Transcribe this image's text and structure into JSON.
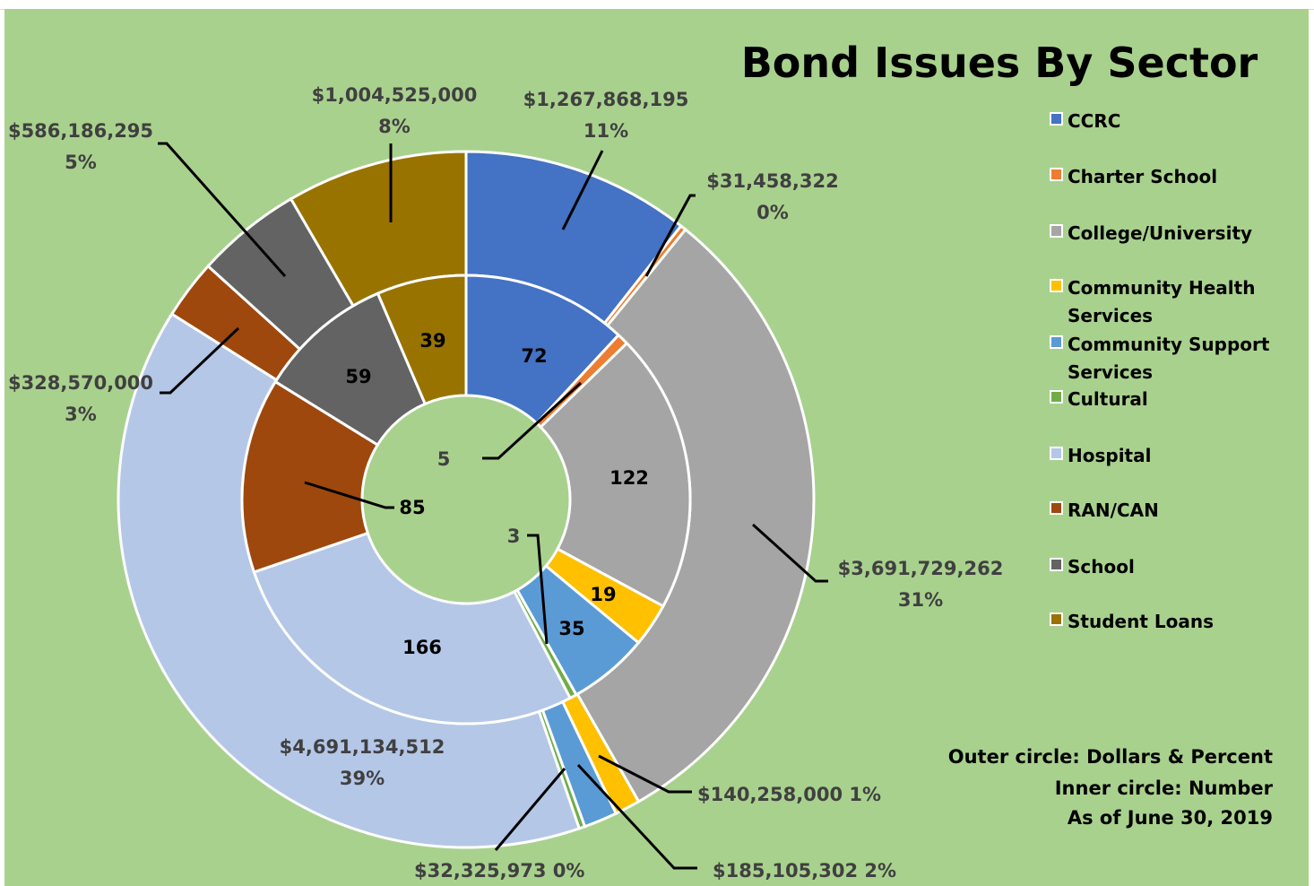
{
  "chart_data": {
    "type": "pie",
    "subtype": "nested-doughnut",
    "title": "Bond Issues By Sector",
    "categories": [
      "CCRC",
      "Charter School",
      "College/University",
      "Community Health Services",
      "Community Support Services",
      "Cultural",
      "Hospital",
      "RAN/CAN",
      "School",
      "Student Loans"
    ],
    "colors": [
      "#4472c4",
      "#ed7d31",
      "#a5a5a5",
      "#ffc000",
      "#5b9bd5",
      "#70ad47",
      "#b4c7e7",
      "#9e480e",
      "#636363",
      "#997300"
    ],
    "series": [
      {
        "name": "Outer circle",
        "values": [
          1267868195,
          31458322,
          3691729262,
          140258000,
          185105302,
          32325973,
          4691134512,
          328570000,
          586186295,
          1004525000
        ],
        "labels": [
          "$1,267,868,195",
          "$31,458,322",
          "$3,691,729,262",
          "$140,258,000",
          "$185,105,302",
          "$32,325,973",
          "$4,691,134,512",
          "$328,570,000",
          "$586,186,295",
          "$1,004,525,000"
        ],
        "percents": [
          "11%",
          "0%",
          "31%",
          "1%",
          "2%",
          "0%",
          "39%",
          "3%",
          "5%",
          "8%"
        ]
      },
      {
        "name": "Inner circle",
        "values": [
          72,
          5,
          122,
          19,
          35,
          3,
          166,
          85,
          59,
          39
        ]
      }
    ],
    "legend_position": "right",
    "notes": [
      "Outer circle:  Dollars & Percent",
      "Inner circle: Number",
      "As of June 30, 2019"
    ]
  }
}
